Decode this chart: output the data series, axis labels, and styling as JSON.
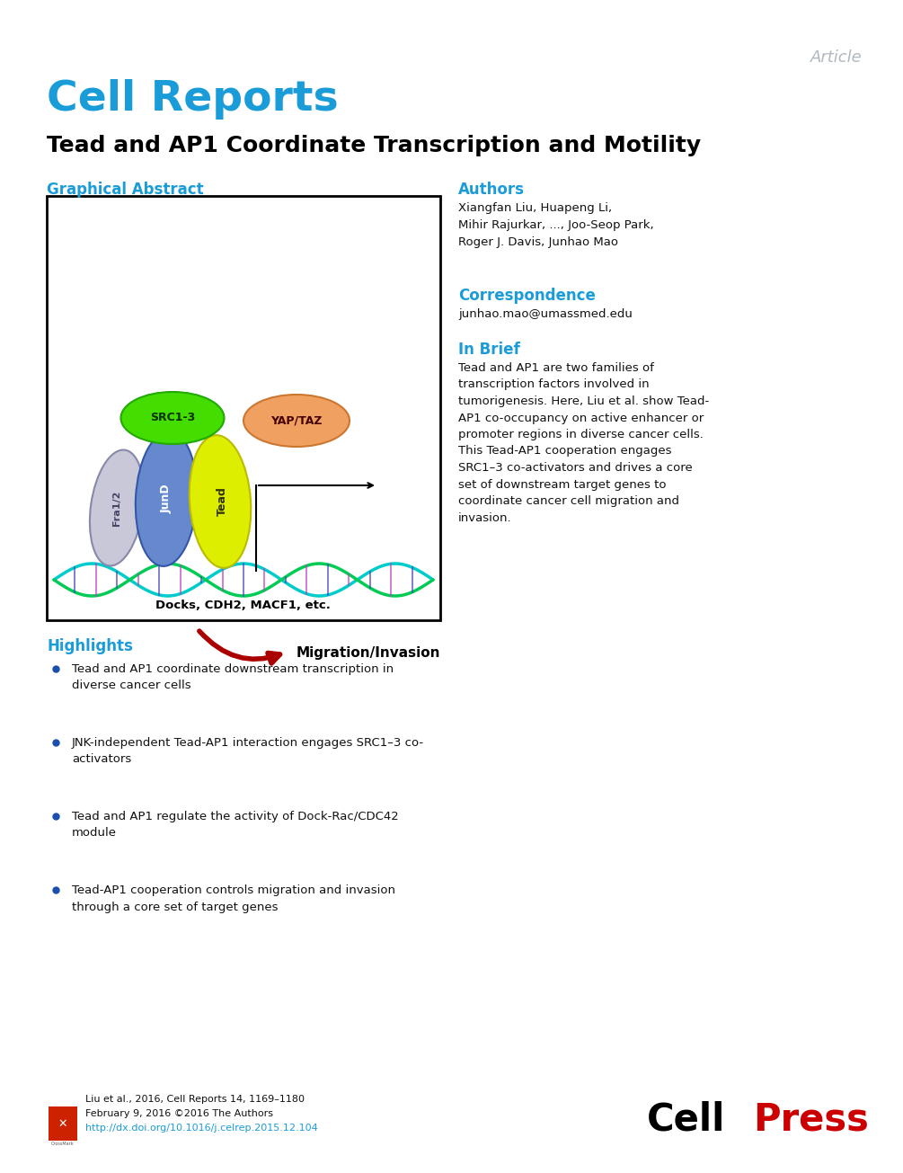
{
  "background_color": "#ffffff",
  "article_label": "Article",
  "article_label_color": "#b0b8c0",
  "journal_name": "Cell Reports",
  "journal_color": "#1a9cd8",
  "title": "Tead and AP1 Coordinate Transcription and Motility",
  "title_color": "#000000",
  "graphical_abstract_label": "Graphical Abstract",
  "section_header_color": "#1a9cd8",
  "authors_label": "Authors",
  "authors_text": "Xiangfan Liu, Huapeng Li,\nMihir Rajurkar, ..., Joo-Seop Park,\nRoger J. Davis, Junhao Mao",
  "correspondence_label": "Correspondence",
  "correspondence_text": "junhao.mao@umassmed.edu",
  "in_brief_label": "In Brief",
  "in_brief_text": "Tead and AP1 are two families of\ntranscription factors involved in\ntumorigenesis. Here, Liu et al. show Tead-\nAP1 co-occupancy on active enhancer or\npromoter regions in diverse cancer cells.\nThis Tead-AP1 cooperation engages\nSRC1–3 co-activators and drives a core\nset of downstream target genes to\ncoordinate cancer cell migration and\ninvasion.",
  "highlights_label": "Highlights",
  "highlight_bullet_color": "#1a4fad",
  "highlights": [
    "Tead and AP1 coordinate downstream transcription in\ndiverse cancer cells",
    "JNK-independent Tead-AP1 interaction engages SRC1–3 co-\nactivators",
    "Tead and AP1 regulate the activity of Dock-Rac/CDC42\nmodule",
    "Tead-AP1 cooperation controls migration and invasion\nthrough a core set of target genes"
  ],
  "footer_text1": "Liu et al., 2016, Cell Reports 14, 1169–1180",
  "footer_text2": "February 9, 2016 ©2016 The Authors",
  "footer_url": "http://dx.doi.org/10.1016/j.celrep.2015.12.104",
  "footer_url_color": "#1a9cd8",
  "dna_color1": "#00cccc",
  "dna_color2": "#00cc55",
  "fra_color": "#c8c8d8",
  "fra_border": "#8888aa",
  "jund_color": "#6688cc",
  "jund_border": "#3355aa",
  "tead_color": "#ddee00",
  "tead_border": "#bbbb00",
  "src_color": "#44dd00",
  "src_border": "#22aa00",
  "yap_color": "#f0a060",
  "yap_border": "#cc7730"
}
